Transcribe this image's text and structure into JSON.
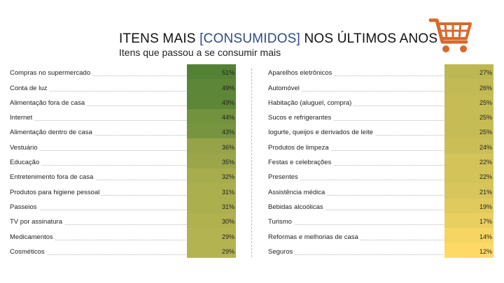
{
  "header": {
    "title_before": "ITENS MAIS ",
    "title_highlight": "[CONSUMIDOS]",
    "title_after": " NOS ÚLTIMOS ANOS",
    "subtitle": "Itens que passou a se consumir mais",
    "icon": "shopping-cart-icon",
    "icon_color": "#d9692b"
  },
  "colors": {
    "high": "#548235",
    "low": "#ffd966"
  },
  "chart_data": {
    "type": "table",
    "value_unit": "%",
    "color_scale": "heatmap green-to-yellow",
    "columns": [
      {
        "items": [
          {
            "label": "Compras no supermercado",
            "value": 51,
            "display": "51%"
          },
          {
            "label": "Conta de luz",
            "value": 49,
            "display": "49%"
          },
          {
            "label": "Alimentação fora de casa",
            "value": 49,
            "display": "49%"
          },
          {
            "label": "Internet",
            "value": 44,
            "display": "44%"
          },
          {
            "label": "Alimentação dentro de casa",
            "value": 43,
            "display": "43%"
          },
          {
            "label": "Vestuário",
            "value": 36,
            "display": "36%"
          },
          {
            "label": "Educação",
            "value": 35,
            "display": "35%"
          },
          {
            "label": "Entretenimento fora de casa",
            "value": 32,
            "display": "32%"
          },
          {
            "label": "Produtos para higiene pessoal",
            "value": 31,
            "display": "31%"
          },
          {
            "label": "Passeios",
            "value": 31,
            "display": "31%"
          },
          {
            "label": "TV por assinatura",
            "value": 30,
            "display": "30%"
          },
          {
            "label": "Medicamentos",
            "value": 29,
            "display": "29%"
          },
          {
            "label": "Cosméticos",
            "value": 29,
            "display": "29%"
          }
        ]
      },
      {
        "items": [
          {
            "label": "Aparelhos eletrônicos",
            "value": 27,
            "display": "27%"
          },
          {
            "label": "Automóvel",
            "value": 26,
            "display": "26%"
          },
          {
            "label": "Habitação (aluguel, compra)",
            "value": 25,
            "display": "25%"
          },
          {
            "label": "Sucos e refrigerantes",
            "value": 25,
            "display": "25%"
          },
          {
            "label": "Iogurte, queijos e derivados de leite",
            "value": 25,
            "display": "25%"
          },
          {
            "label": "Produtos de limpeza",
            "value": 24,
            "display": "24%"
          },
          {
            "label": "Festas e celebrações",
            "value": 22,
            "display": "22%"
          },
          {
            "label": "Presentes",
            "value": 22,
            "display": "22%"
          },
          {
            "label": "Assistência médica",
            "value": 21,
            "display": "21%"
          },
          {
            "label": "Bebidas alcoólicas",
            "value": 19,
            "display": "19%"
          },
          {
            "label": "Turismo",
            "value": 17,
            "display": "17%"
          },
          {
            "label": "Reformas e melhorias de casa",
            "value": 14,
            "display": "14%"
          },
          {
            "label": "Seguros",
            "value": 12,
            "display": "12%"
          }
        ]
      }
    ]
  }
}
